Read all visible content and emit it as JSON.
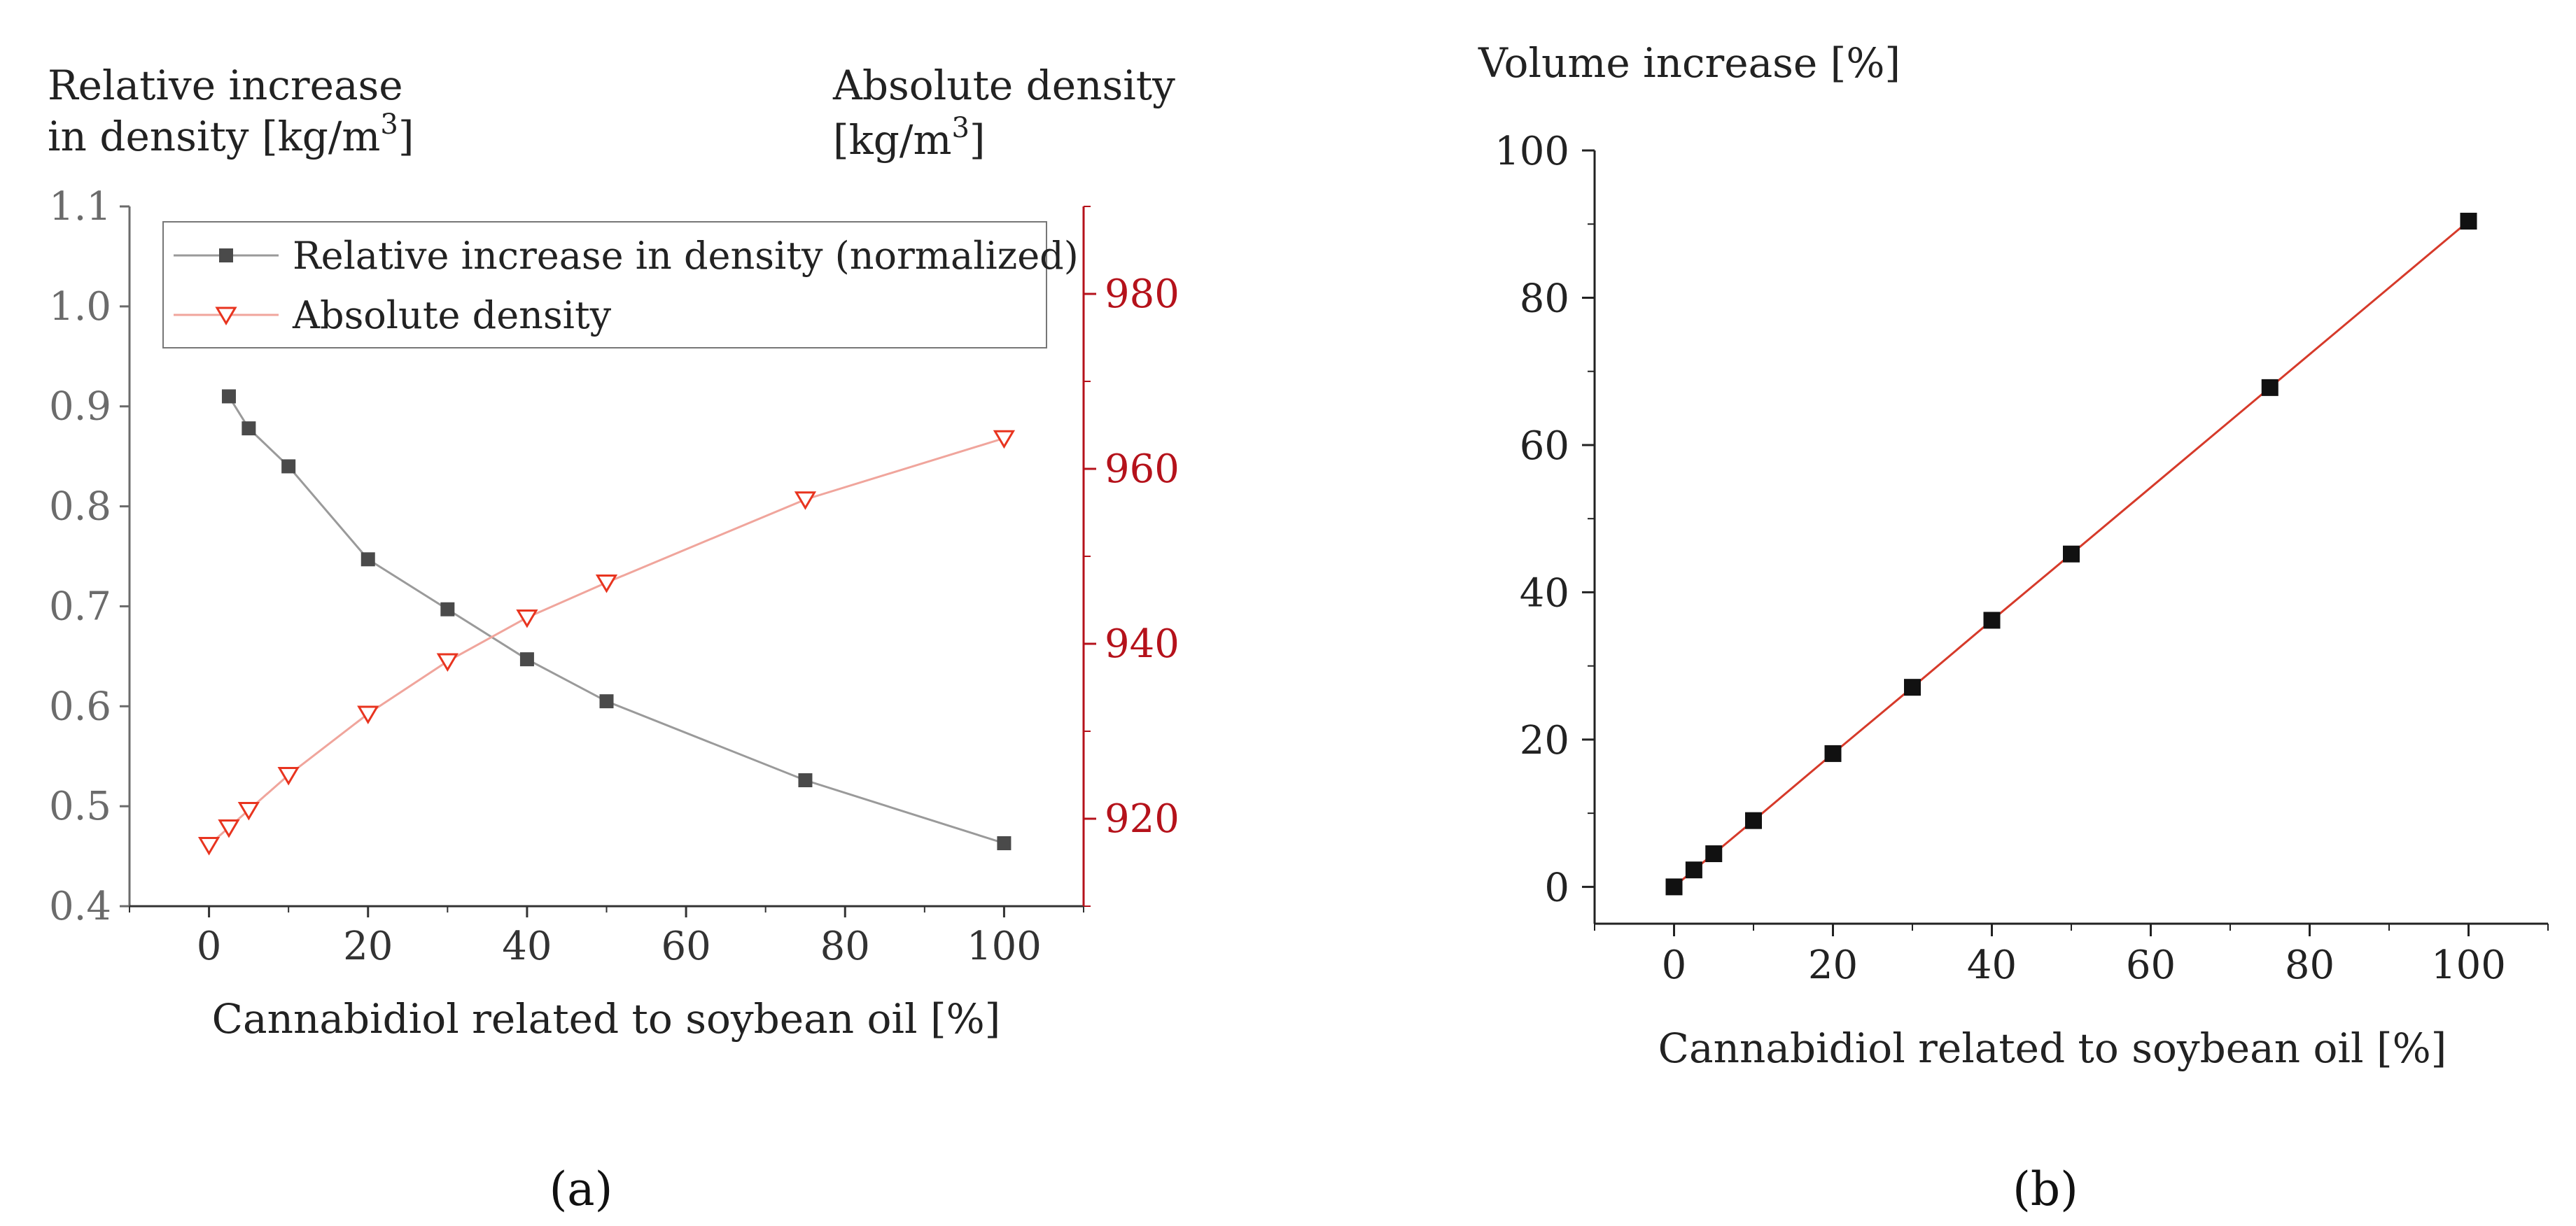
{
  "chart_data": [
    {
      "type": "line",
      "panel_label": "(a)",
      "xlabel": "Cannabidiol related to soybean oil [%]",
      "xlim": [
        -10,
        110
      ],
      "x_ticks": [
        0,
        20,
        40,
        60,
        80,
        100
      ],
      "y_left": {
        "label_lines": [
          "Relative increase",
          "in density [kg/m",
          "3",
          "]"
        ],
        "ylim": [
          0.4,
          1.1
        ],
        "ticks": [
          "0.4",
          "0.5",
          "0.6",
          "0.7",
          "0.8",
          "0.9",
          "1.0",
          "1.1"
        ],
        "color": "#6b6b6b"
      },
      "y_right": {
        "label_lines": [
          "Absolute density",
          "[kg/m",
          "3",
          "]"
        ],
        "ylim": [
          910,
          990
        ],
        "ticks": [
          920,
          940,
          960,
          980
        ],
        "color": "#b5121b"
      },
      "series": [
        {
          "name": "Relative increase in density (normalized)",
          "axis": "left",
          "marker": "square",
          "color": "#4a4a4a",
          "line_color": "#9a9a9a",
          "x": [
            2.5,
            5,
            10,
            20,
            30,
            40,
            50,
            75,
            100
          ],
          "values": [
            0.91,
            0.878,
            0.84,
            0.747,
            0.697,
            0.647,
            0.605,
            0.526,
            0.463
          ]
        },
        {
          "name": "Absolute density",
          "axis": "right",
          "marker": "triangle-down",
          "color": "#e8341f",
          "line_color": "#f0a59c",
          "x": [
            0,
            2.5,
            5,
            10,
            20,
            30,
            40,
            50,
            75,
            100
          ],
          "values": [
            917,
            919,
            921,
            925,
            932,
            938,
            943,
            947,
            956.5,
            963.5
          ]
        }
      ],
      "legend": {
        "placement": "top-right"
      }
    },
    {
      "type": "line",
      "panel_label": "(b)",
      "xlabel": "Cannabidiol related to soybean oil [%]",
      "ylabel": "Volume increase [%]",
      "xlim": [
        -10,
        110
      ],
      "ylim": [
        -5,
        100
      ],
      "x_ticks": [
        0,
        20,
        40,
        60,
        80,
        100
      ],
      "y_ticks": [
        0,
        20,
        40,
        60,
        80,
        100
      ],
      "series": [
        {
          "name": "Volume increase",
          "marker": "square",
          "color": "#111111",
          "line_color": "#d63a2a",
          "x": [
            0,
            2.5,
            5,
            10,
            20,
            30,
            40,
            50,
            75,
            100
          ],
          "values": [
            0,
            2.3,
            4.5,
            9,
            18.1,
            27.1,
            36.2,
            45.2,
            67.8,
            90.4
          ]
        }
      ]
    }
  ]
}
